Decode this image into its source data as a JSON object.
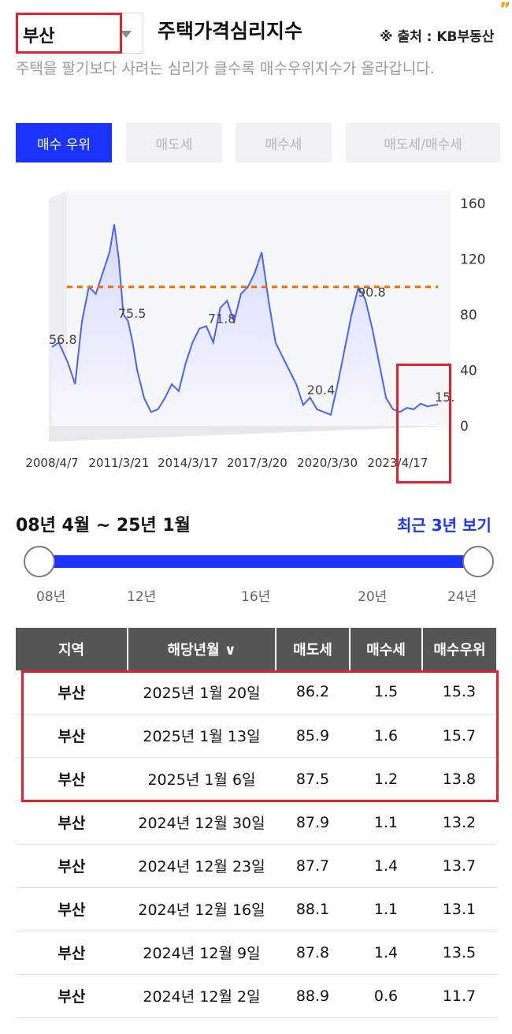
{
  "header": {
    "region": "부산",
    "title": "주택가격심리지수",
    "source": "※ 출처 : KB부동산",
    "quote_mark": "”"
  },
  "description": "주택을 팔기보다 사려는 심리가 클수록 매수우위지수가 올라갑니다.",
  "tabs": [
    {
      "label": "매수 우위",
      "active": true
    },
    {
      "label": "매도세",
      "active": false
    },
    {
      "label": "매수세",
      "active": false
    },
    {
      "label": "매도세/매수세",
      "active": false
    }
  ],
  "chart_data": {
    "type": "area",
    "x_tick_labels": [
      "2008/4/7",
      "2011/3/21",
      "2014/3/17",
      "2017/3/20",
      "2020/3/30",
      "2023/4/17"
    ],
    "y_tick_labels": [
      "0",
      "40",
      "80",
      "120",
      "160"
    ],
    "ylim": [
      0,
      160
    ],
    "reference_line": 100,
    "annotations": [
      {
        "label": "56.8",
        "x": 2008.3,
        "y": 56.8
      },
      {
        "label": "75.5",
        "x": 2011.3,
        "y": 75.5
      },
      {
        "label": "71.8",
        "x": 2015.2,
        "y": 71.8
      },
      {
        "label": "20.4",
        "x": 2019.5,
        "y": 20.4
      },
      {
        "label": "90.8",
        "x": 2021.7,
        "y": 90.8
      },
      {
        "label": "15.",
        "x": 2025.05,
        "y": 15.3
      }
    ],
    "series": [
      {
        "x": [
          2008.3,
          2008.6,
          2009.0,
          2009.3,
          2009.6,
          2009.9,
          2010.2,
          2010.5,
          2010.8,
          2011.0,
          2011.2,
          2011.4,
          2011.6,
          2011.8,
          2012.0,
          2012.3,
          2012.6,
          2012.9,
          2013.2,
          2013.5,
          2013.8,
          2014.1,
          2014.4,
          2014.7,
          2015.0,
          2015.3,
          2015.6,
          2015.9,
          2016.2,
          2016.5,
          2016.8,
          2017.1,
          2017.4,
          2017.7,
          2018.0,
          2018.3,
          2018.6,
          2018.9,
          2019.2,
          2019.5,
          2019.8,
          2020.1,
          2020.4,
          2020.7,
          2021.0,
          2021.3,
          2021.6,
          2021.9,
          2022.2,
          2022.5,
          2022.8,
          2023.1,
          2023.4,
          2023.7,
          2024.0,
          2024.3,
          2024.6,
          2024.9,
          2025.05
        ],
        "y": [
          56.8,
          60,
          45,
          30,
          75,
          100,
          95,
          110,
          125,
          145,
          120,
          80,
          75.5,
          60,
          40,
          20,
          10,
          12,
          20,
          30,
          25,
          45,
          60,
          70,
          71.8,
          60,
          85,
          90,
          75,
          95,
          100,
          110,
          125,
          90,
          60,
          50,
          40,
          30,
          15,
          20.4,
          12,
          10,
          8,
          30,
          55,
          80,
          100,
          90.8,
          70,
          45,
          20,
          12,
          10,
          13,
          12,
          16,
          14,
          15,
          15.3
        ]
      }
    ]
  },
  "period": {
    "range_text": "08년 4월 ~ 25년 1월",
    "recent_link": "최근 3년 보기",
    "slider_ticks": [
      "08년",
      "12년",
      "16년",
      "20년",
      "24년"
    ],
    "start": "08년",
    "end": "24년"
  },
  "table": {
    "headers": [
      "지역",
      "해당년월 ∨",
      "매도세",
      "매수세",
      "매수우위"
    ],
    "rows": [
      [
        "부산",
        "2025년 1월 20일",
        "86.2",
        "1.5",
        "15.3"
      ],
      [
        "부산",
        "2025년 1월 13일",
        "85.9",
        "1.6",
        "15.7"
      ],
      [
        "부산",
        "2025년 1월 6일",
        "87.5",
        "1.2",
        "13.8"
      ],
      [
        "부산",
        "2024년 12월 30일",
        "87.9",
        "1.1",
        "13.2"
      ],
      [
        "부산",
        "2024년 12월 23일",
        "87.7",
        "1.4",
        "13.7"
      ],
      [
        "부산",
        "2024년 12월 16일",
        "88.1",
        "1.1",
        "13.1"
      ],
      [
        "부산",
        "2024년 12월 9일",
        "87.8",
        "1.4",
        "13.5"
      ],
      [
        "부산",
        "2024년 12월 2일",
        "88.9",
        "0.6",
        "11.7"
      ]
    ]
  },
  "colors": {
    "accent": "#1a33ff",
    "highlight": "#e5202f",
    "reference_line": "#ff6a00",
    "line": "#4b63ff",
    "area": "#e8eaff"
  }
}
